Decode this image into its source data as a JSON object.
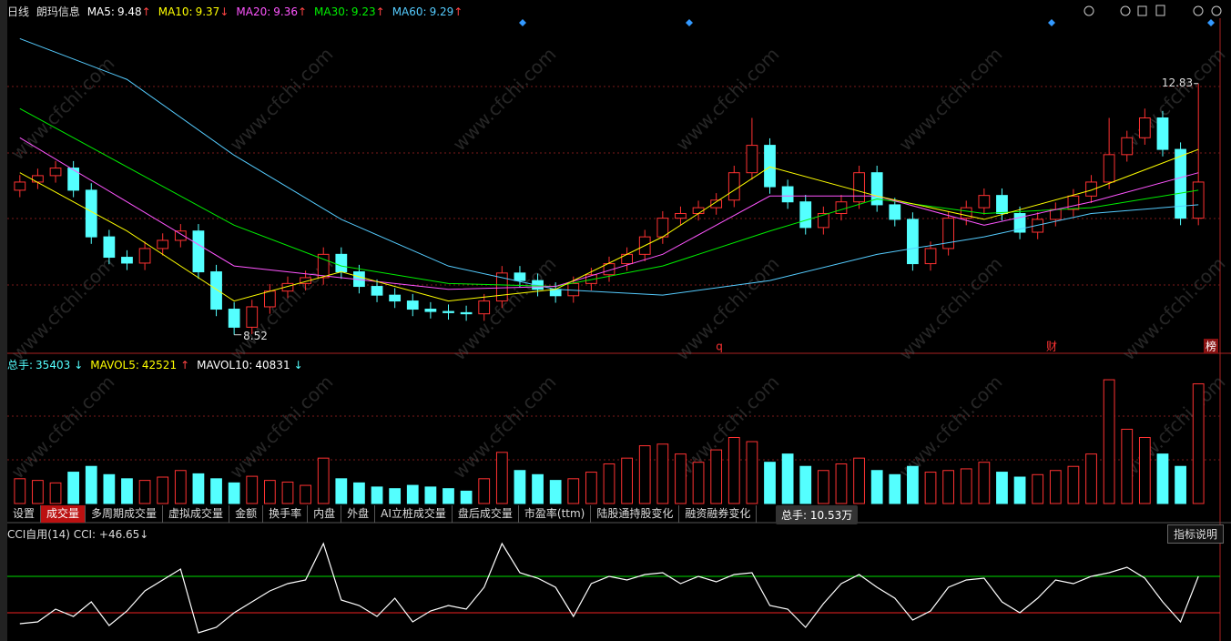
{
  "header": {
    "period": "日线",
    "name": "朗玛信息",
    "ma": [
      {
        "label": "MA5:",
        "value": 9.48,
        "arrow": "↑",
        "color": "#ffffff"
      },
      {
        "label": "MA10:",
        "value": 9.37,
        "arrow": "↓",
        "color": "#ffff00"
      },
      {
        "label": "MA20:",
        "value": 9.36,
        "arrow": "↑",
        "color": "#ff55ff"
      },
      {
        "label": "MA30:",
        "value": 9.23,
        "arrow": "↑",
        "color": "#00ee00"
      },
      {
        "label": "MA60:",
        "value": 9.29,
        "arrow": "↑",
        "color": "#55ccff"
      }
    ]
  },
  "markers": [
    "q",
    "财",
    "榜"
  ],
  "volume_legend": [
    {
      "label": "总手:",
      "value": 35403,
      "arrow": "↓",
      "color": "#55ffff"
    },
    {
      "label": "MAVOL5:",
      "value": 42521,
      "arrow": "↑",
      "color": "#ffff00"
    },
    {
      "label": "MAVOL10:",
      "value": 40831,
      "arrow": "↓",
      "color": "#ffffff"
    }
  ],
  "tabs": [
    "设置",
    "成交量",
    "多周期成交量",
    "虚拟成交量",
    "金额",
    "换手率",
    "内盘",
    "外盘",
    "AI立桩成交量",
    "盘后成交量",
    "市盈率(ttm)",
    "陆股通持股变化",
    "融资融券变化"
  ],
  "active_tab": 1,
  "tooltip": "总手: 10.53万",
  "cci_legend": "CCI自用(14) CCI: +46.65↓",
  "help_button": "指标说明",
  "watermark": "www.cfchi.com",
  "chart_data": [
    {
      "type": "candlestick",
      "up_color": "#ff3232",
      "down_color": "#54ffff",
      "ylim": [
        8.25,
        13.95
      ],
      "open": [
        11.0,
        11.14,
        11.25,
        11.38,
        11.0,
        10.2,
        9.85,
        9.75,
        10.0,
        10.14,
        10.3,
        9.6,
        8.96,
        8.65,
        9.0,
        9.27,
        9.4,
        9.5,
        9.9,
        9.6,
        9.35,
        9.2,
        9.1,
        8.96,
        8.92,
        8.9,
        8.88,
        9.1,
        9.58,
        9.45,
        9.3,
        9.19,
        9.4,
        9.55,
        9.74,
        9.9,
        10.2,
        10.52,
        10.6,
        10.7,
        10.83,
        11.3,
        11.77,
        11.06,
        10.8,
        10.36,
        10.6,
        10.8,
        11.3,
        10.75,
        10.5,
        9.74,
        10.0,
        10.52,
        10.7,
        10.91,
        10.6,
        10.28,
        10.5,
        10.67,
        10.9,
        11.14,
        11.61,
        11.9,
        12.24,
        11.7,
        10.52
      ],
      "high": [
        11.26,
        11.37,
        11.5,
        11.5,
        11.12,
        10.32,
        9.97,
        10.12,
        10.26,
        10.42,
        10.42,
        9.72,
        9.08,
        9.12,
        9.39,
        9.52,
        9.62,
        10.02,
        10.02,
        9.72,
        9.47,
        9.32,
        9.22,
        9.08,
        9.04,
        9.02,
        9.22,
        9.7,
        9.7,
        9.57,
        9.42,
        9.52,
        9.67,
        9.86,
        10.02,
        10.32,
        10.64,
        10.72,
        10.82,
        10.95,
        11.42,
        12.24,
        11.89,
        11.18,
        10.92,
        10.72,
        10.92,
        11.42,
        11.42,
        10.87,
        10.62,
        10.12,
        10.64,
        10.82,
        11.03,
        11.03,
        10.72,
        10.62,
        10.79,
        11.02,
        11.26,
        12.24,
        12.02,
        12.4,
        12.36,
        11.82,
        12.83
      ],
      "low": [
        10.88,
        11.02,
        11.13,
        10.88,
        10.08,
        9.73,
        9.63,
        9.63,
        9.88,
        10.02,
        9.48,
        8.84,
        8.52,
        8.53,
        8.88,
        9.15,
        9.28,
        9.38,
        9.48,
        9.23,
        9.08,
        8.98,
        8.84,
        8.8,
        8.78,
        8.76,
        8.76,
        8.98,
        9.33,
        9.18,
        9.07,
        9.07,
        9.28,
        9.43,
        9.62,
        9.78,
        10.08,
        10.4,
        10.48,
        10.58,
        10.71,
        11.18,
        10.94,
        10.68,
        10.24,
        10.24,
        10.48,
        10.68,
        10.63,
        10.38,
        9.62,
        9.62,
        9.88,
        10.4,
        10.58,
        10.48,
        10.16,
        10.16,
        10.38,
        10.55,
        10.78,
        11.02,
        11.49,
        11.78,
        11.58,
        10.4,
        10.4
      ],
      "close": [
        11.14,
        11.25,
        11.38,
        11.0,
        10.2,
        9.85,
        9.75,
        10.0,
        10.14,
        10.3,
        9.6,
        8.96,
        8.65,
        9.0,
        9.27,
        9.4,
        9.5,
        9.9,
        9.6,
        9.35,
        9.2,
        9.1,
        8.96,
        8.92,
        8.9,
        8.88,
        9.1,
        9.58,
        9.45,
        9.3,
        9.19,
        9.4,
        9.55,
        9.74,
        9.9,
        10.2,
        10.52,
        10.6,
        10.7,
        10.83,
        11.3,
        11.77,
        11.06,
        10.8,
        10.36,
        10.6,
        10.8,
        11.3,
        10.75,
        10.5,
        9.74,
        10.0,
        10.52,
        10.7,
        10.91,
        10.6,
        10.28,
        10.5,
        10.67,
        10.9,
        11.14,
        11.61,
        11.9,
        12.24,
        11.7,
        10.52,
        11.14
      ],
      "lines": [
        {
          "color": "#55ccff",
          "x": [
            0,
            6,
            12,
            18,
            24,
            30,
            36,
            42,
            48,
            54,
            60,
            66
          ],
          "values": [
            13.6,
            12.9,
            11.6,
            10.5,
            9.7,
            9.3,
            9.2,
            9.45,
            9.9,
            10.2,
            10.6,
            10.75
          ]
        },
        {
          "color": "#00ee00",
          "x": [
            0,
            6,
            12,
            18,
            24,
            30,
            36,
            42,
            48,
            54,
            60,
            66
          ],
          "values": [
            12.4,
            11.4,
            10.4,
            9.7,
            9.4,
            9.35,
            9.7,
            10.3,
            10.85,
            10.6,
            10.7,
            11.0
          ]
        },
        {
          "color": "#ff55ff",
          "x": [
            0,
            6,
            12,
            18,
            24,
            30,
            36,
            42,
            48,
            54,
            60,
            66
          ],
          "values": [
            11.9,
            10.8,
            9.7,
            9.5,
            9.3,
            9.35,
            9.9,
            10.9,
            10.9,
            10.4,
            10.8,
            11.3
          ]
        },
        {
          "color": "#ffff00",
          "x": [
            0,
            6,
            12,
            18,
            24,
            30,
            36,
            42,
            48,
            54,
            60,
            66
          ],
          "values": [
            11.3,
            10.3,
            9.1,
            9.6,
            9.1,
            9.3,
            10.2,
            11.4,
            10.9,
            10.5,
            11.0,
            11.7
          ]
        }
      ]
    },
    {
      "type": "bar",
      "ylim": [
        0,
        160000
      ],
      "values": [
        30000,
        28000,
        25000,
        38000,
        45000,
        35000,
        30000,
        28000,
        32000,
        40000,
        36000,
        30000,
        25000,
        33000,
        28000,
        26000,
        22000,
        55000,
        30000,
        25000,
        20000,
        18000,
        22000,
        20000,
        18000,
        15000,
        30000,
        62000,
        40000,
        35000,
        28000,
        30000,
        38000,
        48000,
        55000,
        70000,
        72000,
        60000,
        50000,
        65000,
        80000,
        75000,
        50000,
        60000,
        45000,
        40000,
        48000,
        55000,
        40000,
        35000,
        45000,
        38000,
        40000,
        42000,
        50000,
        38000,
        32000,
        35000,
        40000,
        45000,
        60000,
        150000,
        90000,
        80000,
        60000,
        45000,
        145000
      ]
    },
    {
      "type": "line",
      "color": "#ffffff",
      "ylim": [
        -235,
        315
      ],
      "levels": [
        {
          "value": 100,
          "color": "#00dd00"
        },
        {
          "value": -100,
          "color": "#ee2222"
        }
      ],
      "values": [
        -160,
        -150,
        -80,
        -120,
        -40,
        -170,
        -90,
        20,
        80,
        140,
        -210,
        -180,
        -100,
        -40,
        20,
        60,
        80,
        280,
        -30,
        -60,
        -120,
        -20,
        -150,
        -90,
        -60,
        -80,
        40,
        280,
        120,
        90,
        40,
        -120,
        60,
        100,
        80,
        110,
        120,
        60,
        100,
        70,
        110,
        120,
        -60,
        -80,
        -180,
        -50,
        60,
        110,
        40,
        -20,
        -140,
        -90,
        40,
        80,
        90,
        -40,
        -100,
        -20,
        80,
        60,
        100,
        120,
        150,
        90,
        -40,
        -150,
        100
      ]
    }
  ]
}
